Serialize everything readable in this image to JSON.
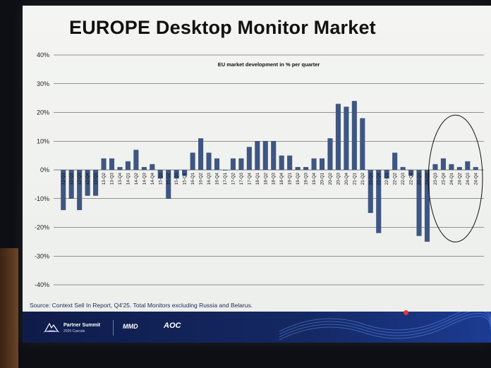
{
  "slide": {
    "title": "EUROPE Desktop Monitor Market",
    "source": "Source: Context Sell In Report, Q4'25. Total Monitors excluding Russia and Belarus.",
    "footer": {
      "event_name": "Partner Summit",
      "event_sub": "2026 Cascais",
      "brand_1": "MMD",
      "brand_2": "AOC"
    }
  },
  "chart_data": {
    "type": "bar",
    "title": "EU market development in % per quarter",
    "xlabel": "",
    "ylabel": "",
    "ylim": [
      -40,
      40
    ],
    "y_ticks": [
      "40%",
      "30%",
      "20%",
      "10%",
      "0%",
      "-10%",
      "-20%",
      "-30%",
      "-40%"
    ],
    "y_tick_values": [
      40,
      30,
      20,
      10,
      0,
      -10,
      -20,
      -30,
      -40
    ],
    "bar_color": "#3f5683",
    "highlight": "ellipse around 23-Q4 to 24-Q4",
    "categories": [
      "12-Q1",
      "12-Q2",
      "12-Q3",
      "12-Q4",
      "13-Q1",
      "13-Q2",
      "13-Q3",
      "13-Q4",
      "14-Q1",
      "14-Q2",
      "14-Q3",
      "14-Q4",
      "15-Q1",
      "15-Q2",
      "15-Q3",
      "15-Q4",
      "16-Q1",
      "16-Q2",
      "16-Q3",
      "16-Q4",
      "17-Q1",
      "17-Q2",
      "17-Q3",
      "17-Q4",
      "18-Q1",
      "18-Q2",
      "18-Q3",
      "18-Q4",
      "19-Q1",
      "19-Q2",
      "19-Q3",
      "19-Q4",
      "20-Q1",
      "20-Q2",
      "20-Q3",
      "20-Q4",
      "21-Q1",
      "21-Q2",
      "21-Q3",
      "21-Q4",
      "22-Q1",
      "22-Q2",
      "22-Q3",
      "22-Q4",
      "23-Q1",
      "23-Q2",
      "23-Q3",
      "23-Q4",
      "24-Q1",
      "24-Q2",
      "24-Q3",
      "24-Q4"
    ],
    "values": [
      -14,
      -10,
      -14,
      -9,
      -9,
      4,
      4,
      1,
      3,
      7,
      1,
      2,
      -3,
      -10,
      -3,
      -2,
      6,
      11,
      6,
      4,
      0,
      4,
      4,
      8,
      10,
      10,
      10,
      5,
      5,
      1,
      1,
      4,
      4,
      11,
      23,
      22,
      24,
      18,
      -15,
      -22,
      -3,
      6,
      1,
      -2,
      -23,
      -25,
      2,
      4,
      2,
      1,
      3,
      1
    ]
  }
}
